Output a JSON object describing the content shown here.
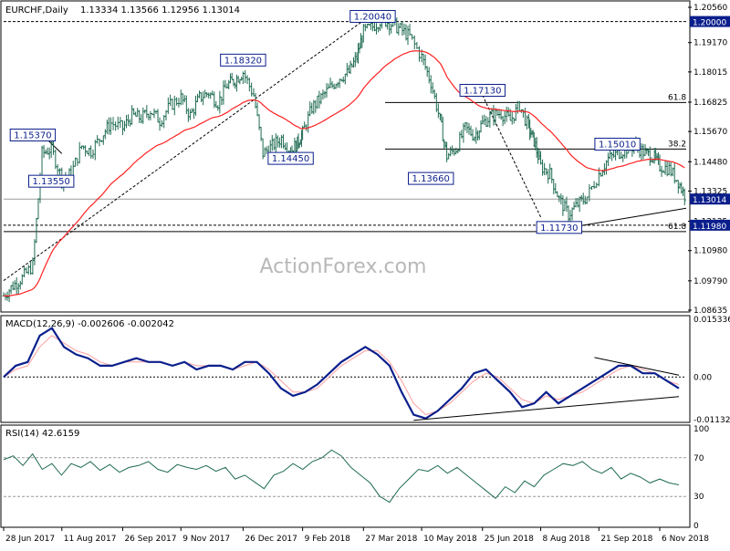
{
  "header": {
    "symbol": "EURCHF,Daily",
    "ohlc": "1.13334 1.13566 1.12956 1.13014"
  },
  "watermark": "ActionForex.com",
  "colors": {
    "background": "#ffffff",
    "price_bars": "#1f6b53",
    "ema": "#ff2020",
    "macd": "#0b1f8c",
    "macd_signal": "#ff9e9e",
    "rsi": "#1f6b53",
    "label_border": "#0b1f8c",
    "label_text": "#0b1f8c",
    "current_price_bg": "#0b1f8c",
    "lines": "#000000"
  },
  "chart_data": [
    {
      "type": "line",
      "panel": "price",
      "title": "EURCHF,Daily",
      "ylim": [
        1.08635,
        1.2056
      ],
      "y_ticks": [
        "1.20560",
        "1.19170",
        "1.18015",
        "1.16825",
        "1.15670",
        "1.14480",
        "1.13325",
        "1.12135",
        "1.10980",
        "1.09790",
        "1.08635"
      ],
      "x_ticks": [
        "28 Jun 2017",
        "11 Aug 2017",
        "26 Sep 2017",
        "9 Nov 2017",
        "26 Dec 2017",
        "9 Feb 2018",
        "27 Mar 2018",
        "10 May 2018",
        "25 Jun 2018",
        "8 Aug 2018",
        "21 Sep 2018",
        "6 Nov 2018"
      ],
      "series": [
        {
          "style": "ohlc-bars",
          "x": [
            "2017-06-28",
            "2017-07-05",
            "2017-07-12",
            "2017-07-20",
            "2017-07-27",
            "2017-08-03",
            "2017-08-11",
            "2017-08-18",
            "2017-08-26",
            "2017-09-02",
            "2017-09-10",
            "2017-09-17",
            "2017-09-26",
            "2017-10-03",
            "2017-10-10",
            "2017-10-17",
            "2017-10-24",
            "2017-11-01",
            "2017-11-09",
            "2017-11-16",
            "2017-11-23",
            "2017-11-30",
            "2017-12-07",
            "2017-12-14",
            "2017-12-20",
            "2017-12-26",
            "2018-01-03",
            "2018-01-10",
            "2018-01-17",
            "2018-01-24",
            "2018-01-31",
            "2018-02-05",
            "2018-02-09",
            "2018-02-16",
            "2018-02-23",
            "2018-03-02",
            "2018-03-09",
            "2018-03-16",
            "2018-03-22",
            "2018-03-27",
            "2018-04-03",
            "2018-04-10",
            "2018-04-17",
            "2018-04-24",
            "2018-05-01",
            "2018-05-10",
            "2018-05-17",
            "2018-05-24",
            "2018-05-29",
            "2018-06-05",
            "2018-06-12",
            "2018-06-19",
            "2018-06-25",
            "2018-07-02",
            "2018-07-09",
            "2018-07-16",
            "2018-07-23",
            "2018-07-30",
            "2018-08-03",
            "2018-08-08",
            "2018-08-15",
            "2018-08-22",
            "2018-08-29",
            "2018-09-05",
            "2018-09-12",
            "2018-09-21",
            "2018-09-28",
            "2018-10-05",
            "2018-10-12",
            "2018-10-19",
            "2018-10-26",
            "2018-11-01",
            "2018-11-06",
            "2018-11-13",
            "2018-11-20",
            "2018-11-26"
          ],
          "close": [
            1.092,
            1.096,
            1.099,
            1.104,
            1.148,
            1.15,
            1.138,
            1.14,
            1.151,
            1.149,
            1.155,
            1.16,
            1.158,
            1.163,
            1.162,
            1.165,
            1.161,
            1.167,
            1.17,
            1.163,
            1.17,
            1.172,
            1.168,
            1.175,
            1.177,
            1.18,
            1.171,
            1.148,
            1.151,
            1.154,
            1.149,
            1.152,
            1.156,
            1.166,
            1.17,
            1.174,
            1.178,
            1.18,
            1.186,
            1.196,
            1.198,
            1.201,
            1.199,
            1.197,
            1.194,
            1.186,
            1.176,
            1.161,
            1.147,
            1.15,
            1.158,
            1.155,
            1.16,
            1.163,
            1.164,
            1.161,
            1.167,
            1.158,
            1.153,
            1.143,
            1.14,
            1.13,
            1.124,
            1.128,
            1.131,
            1.14,
            1.146,
            1.148,
            1.15,
            1.151,
            1.148,
            1.147,
            1.143,
            1.142,
            1.137,
            1.13
          ]
        },
        {
          "name": "EMA",
          "style": "line"
        }
      ],
      "hlines": [
        {
          "value": 1.2,
          "label": "1.20000",
          "style": "dashed"
        },
        {
          "value": 1.1681,
          "label": "61.8",
          "style": "solid"
        },
        {
          "value": 1.1498,
          "label": "38.2",
          "style": "solid"
        },
        {
          "value": 1.1301,
          "label": "1.13014",
          "style": "current"
        },
        {
          "value": 1.1198,
          "label": "1.11980",
          "style": "dashed"
        },
        {
          "value": 1.1173,
          "label": "61.8",
          "style": "solid"
        }
      ],
      "annotations": [
        {
          "text": "1.15370",
          "x": "2017-07-20",
          "y": 1.1537
        },
        {
          "text": "1.13550",
          "x": "2017-08-03",
          "y": 1.1355
        },
        {
          "text": "1.18320",
          "x": "2017-12-26",
          "y": 1.1832
        },
        {
          "text": "1.14450",
          "x": "2018-01-31",
          "y": 1.1445
        },
        {
          "text": "1.20040",
          "x": "2018-04-03",
          "y": 1.2004
        },
        {
          "text": "1.13660",
          "x": "2018-05-17",
          "y": 1.1366
        },
        {
          "text": "1.17130",
          "x": "2018-06-25",
          "y": 1.1713
        },
        {
          "text": "1.11730",
          "x": "2018-08-22",
          "y": 1.1173
        },
        {
          "text": "1.15010",
          "x": "2018-10-05",
          "y": 1.1501
        }
      ]
    },
    {
      "type": "line",
      "panel": "macd",
      "title": "MACD(12,26,9) -0.002606 -0.002042",
      "ylim": [
        -0.01132,
        0.015336
      ],
      "y_ticks": [
        "0.015336",
        "0.00",
        "-0.011320"
      ],
      "series": [
        {
          "name": "MACD",
          "values": [
            0.0,
            0.003,
            0.004,
            0.011,
            0.013,
            0.008,
            0.006,
            0.005,
            0.003,
            0.003,
            0.004,
            0.005,
            0.004,
            0.004,
            0.003,
            0.004,
            0.002,
            0.003,
            0.003,
            0.002,
            0.004,
            0.004,
            0.001,
            -0.003,
            -0.005,
            -0.004,
            -0.002,
            0.001,
            0.004,
            0.006,
            0.008,
            0.006,
            0.003,
            -0.004,
            -0.01,
            -0.011,
            -0.009,
            -0.006,
            -0.003,
            0.001,
            0.002,
            -0.001,
            -0.004,
            -0.008,
            -0.007,
            -0.004,
            -0.007,
            -0.005,
            -0.003,
            -0.001,
            0.001,
            0.003,
            0.003,
            0.001,
            0.001,
            -0.001,
            -0.003
          ]
        },
        {
          "name": "Signal",
          "values": [
            0.0,
            0.002,
            0.003,
            0.008,
            0.011,
            0.009,
            0.007,
            0.006,
            0.004,
            0.003,
            0.004,
            0.004,
            0.004,
            0.004,
            0.003,
            0.004,
            0.003,
            0.003,
            0.003,
            0.002,
            0.003,
            0.004,
            0.002,
            -0.001,
            -0.004,
            -0.004,
            -0.003,
            0.0,
            0.003,
            0.005,
            0.007,
            0.007,
            0.004,
            -0.001,
            -0.007,
            -0.01,
            -0.009,
            -0.007,
            -0.004,
            -0.001,
            0.001,
            0.0,
            -0.003,
            -0.006,
            -0.007,
            -0.005,
            -0.006,
            -0.005,
            -0.004,
            -0.002,
            0.0,
            0.002,
            0.003,
            0.002,
            0.001,
            -0.001,
            -0.002
          ]
        }
      ]
    },
    {
      "type": "line",
      "panel": "rsi",
      "title": "RSI(14) 42.6159",
      "ylim": [
        0,
        100
      ],
      "y_ticks": [
        "100",
        "70",
        "30",
        "0"
      ],
      "hlines": [
        70,
        30
      ],
      "series": [
        {
          "name": "RSI",
          "values": [
            68,
            72,
            62,
            74,
            58,
            64,
            52,
            64,
            60,
            66,
            57,
            63,
            55,
            60,
            62,
            66,
            58,
            55,
            63,
            60,
            58,
            62,
            56,
            60,
            48,
            52,
            45,
            38,
            52,
            56,
            64,
            58,
            66,
            70,
            78,
            72,
            60,
            52,
            44,
            30,
            24,
            38,
            48,
            58,
            56,
            62,
            54,
            60,
            52,
            44,
            36,
            28,
            40,
            34,
            46,
            40,
            52,
            58,
            64,
            62,
            66,
            58,
            54,
            60,
            48,
            54,
            50,
            44,
            48,
            44,
            42
          ]
        }
      ]
    }
  ]
}
